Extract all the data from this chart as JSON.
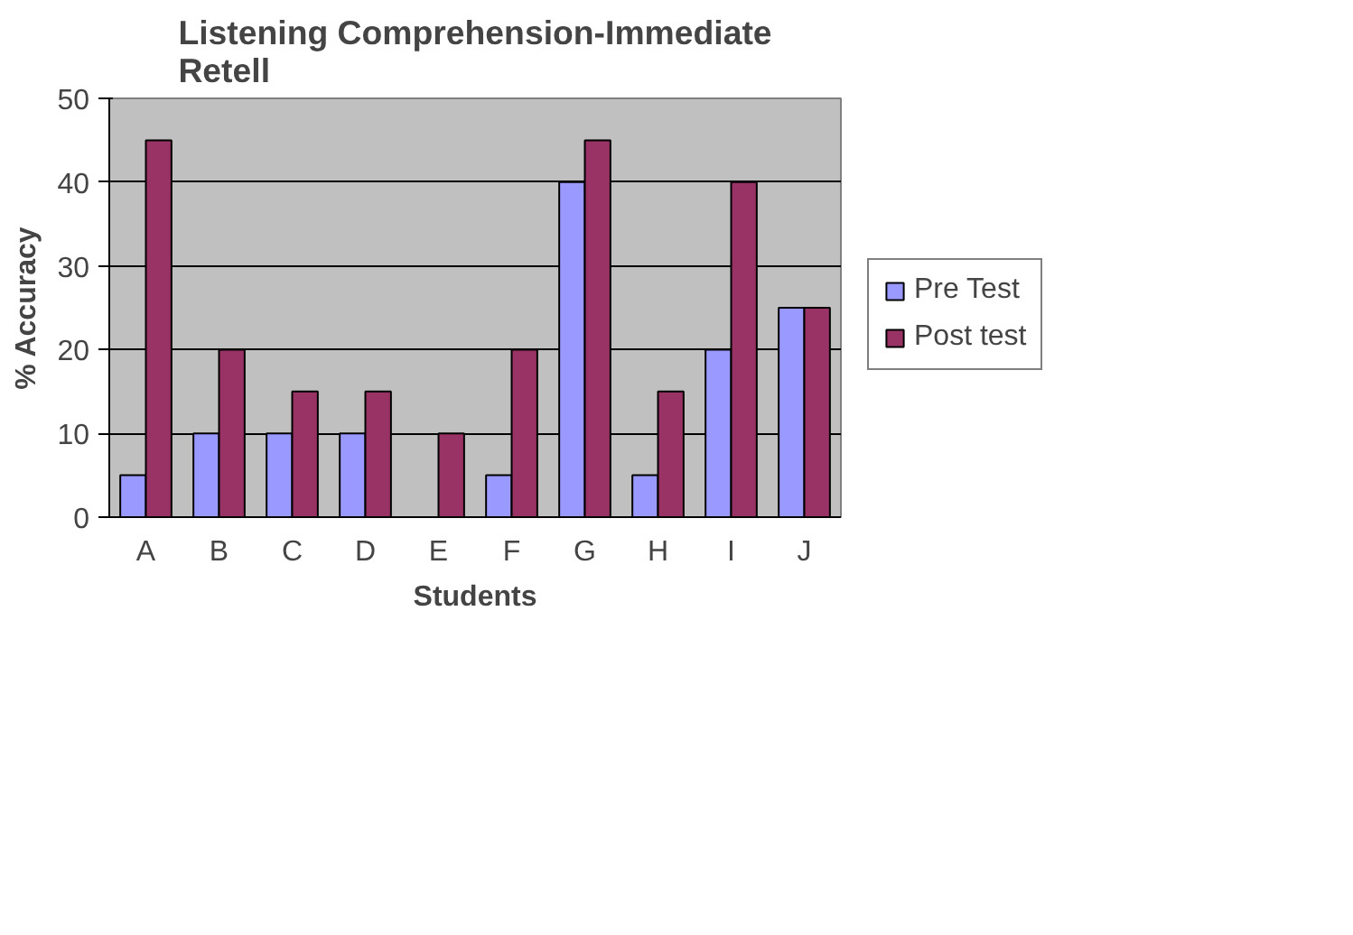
{
  "chart_data": {
    "type": "bar",
    "title": "Listening Comprehension-Immediate Retell",
    "xlabel": "Students",
    "ylabel": "% Accuracy",
    "categories": [
      "A",
      "B",
      "C",
      "D",
      "E",
      "F",
      "G",
      "H",
      "I",
      "J"
    ],
    "series": [
      {
        "name": "Pre Test",
        "color": "#9999ff",
        "values": [
          5,
          10,
          10,
          10,
          0,
          5,
          40,
          5,
          20,
          25
        ]
      },
      {
        "name": "Post test",
        "color": "#993366",
        "values": [
          45,
          20,
          15,
          15,
          10,
          20,
          45,
          15,
          40,
          25
        ]
      }
    ],
    "ylim": [
      0,
      50
    ],
    "yticks": [
      0,
      10,
      20,
      30,
      40,
      50
    ],
    "grid": "y",
    "legend": "right"
  }
}
